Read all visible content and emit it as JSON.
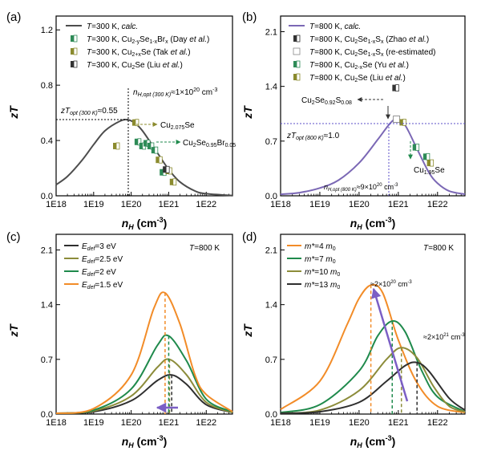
{
  "chart_data": [
    {
      "panel": "(a)",
      "type": "line",
      "xlabel": "n_H (cm^-3)",
      "ylabel": "zT",
      "x_scale": "log",
      "xlim": [
        1e+18,
        5e+22
      ],
      "ylim": [
        0,
        1.3
      ],
      "xticks": [
        1e+18,
        1e+19,
        1e+20,
        1e+21,
        1e+22
      ],
      "xtick_labels": [
        "1E18",
        "1E19",
        "1E20",
        "1E21",
        "1E22"
      ],
      "yticks": [
        0.0,
        0.4,
        0.8,
        1.2
      ],
      "ytick_labels": [
        "0.0",
        "0.4",
        "0.8",
        "1.2"
      ],
      "legend_position": "top-left",
      "series": [
        {
          "name": "T=300 K, calc.",
          "kind": "line",
          "color": "#4d4d4d",
          "x": [
            1e+18,
            2e+18,
            5e+18,
            1e+19,
            2e+19,
            5e+19,
            8e+19,
            1.2e+20,
            2e+20,
            5e+20,
            1e+21,
            2e+21,
            5e+21,
            1e+22,
            5e+22
          ],
          "y": [
            0.08,
            0.14,
            0.26,
            0.37,
            0.47,
            0.54,
            0.55,
            0.53,
            0.47,
            0.31,
            0.19,
            0.1,
            0.035,
            0.015,
            0.002
          ]
        },
        {
          "name": "T=300 K, Cu2-ySe1-xBrx (Day et al.)",
          "kind": "marker",
          "color": "#2e8b57",
          "x": [
            1.5e+20,
            2e+20,
            2.6e+20,
            3.3e+20,
            4.2e+20,
            7e+20
          ],
          "y": [
            0.39,
            0.36,
            0.38,
            0.36,
            0.33,
            0.17
          ]
        },
        {
          "name": "T=300 K, Cu2+xSe (Tak et al.)",
          "kind": "marker",
          "color": "#8b8b2e",
          "x": [
            4e+19,
            1.3e+20,
            5.5e+20,
            1e+21,
            1.3e+21
          ],
          "y": [
            0.36,
            0.53,
            0.26,
            0.18,
            0.1
          ]
        },
        {
          "name": "T=300 K, Cu2Se (Liu et al.)",
          "kind": "marker",
          "color": "#333333",
          "x": [
            8.5e+20
          ],
          "y": [
            0.19
          ]
        }
      ],
      "annotations": [
        "zT_opt (300 K)≈0.55",
        "n_H,opt (300 K)≈1×10^20 cm^-3",
        "Cu2.075Se",
        "Cu2Se0.95Br0.05"
      ]
    },
    {
      "panel": "(b)",
      "type": "line",
      "xlabel": "n_H (cm^-3)",
      "ylabel": "zT",
      "x_scale": "log",
      "xlim": [
        1e+18,
        5e+22
      ],
      "ylim": [
        0,
        2.3
      ],
      "xticks": [
        1e+18,
        1e+19,
        1e+20,
        1e+21,
        1e+22
      ],
      "xtick_labels": [
        "1E18",
        "1E19",
        "1E20",
        "1E21",
        "1E22"
      ],
      "yticks": [
        0.0,
        0.7,
        1.4,
        2.1
      ],
      "ytick_labels": [
        "0.0",
        "0.7",
        "1.4",
        "2.1"
      ],
      "legend_position": "top-right",
      "series": [
        {
          "name": "T=800 K, calc.",
          "kind": "line",
          "color": "#7b68b5",
          "x": [
            1e+18,
            3e+18,
            1e+19,
            3e+19,
            1e+20,
            3e+20,
            6e+20,
            9e+20,
            1.5e+21,
            3e+21,
            6e+21,
            1e+22,
            2e+22,
            5e+22
          ],
          "y": [
            0.02,
            0.04,
            0.1,
            0.2,
            0.42,
            0.72,
            0.92,
            0.98,
            0.9,
            0.6,
            0.3,
            0.16,
            0.06,
            0.02
          ]
        },
        {
          "name": "T=800 K, Cu2Se1-xSx (Zhao et al.)",
          "kind": "marker",
          "color": "#333333",
          "x": [
            8.5e+20
          ],
          "y": [
            1.38
          ]
        },
        {
          "name": "T=800 K, Cu2Se1-xSx (re-estimated)",
          "kind": "marker",
          "color": "#888888",
          "x": [
            9e+20
          ],
          "y": [
            0.98
          ]
        },
        {
          "name": "T=800 K, Cu2-xSe (Yu et al.)",
          "kind": "marker",
          "color": "#2e8b57",
          "x": [
            2.8e+21,
            5.2e+21
          ],
          "y": [
            0.62,
            0.5
          ]
        },
        {
          "name": "T=800 K, Cu2Se (Liu et al.)",
          "kind": "marker",
          "color": "#8b8b2e",
          "x": [
            1.3e+21,
            6.5e+21
          ],
          "y": [
            0.94,
            0.42
          ]
        }
      ],
      "annotations": [
        "Cu2Se0.92S0.08",
        "zT_opt (800 K)≈1.0",
        "n_H,opt (800 K)≈9×10^20 cm^-3",
        "Cu1.95Se"
      ]
    },
    {
      "panel": "(c)",
      "type": "line",
      "xlabel": "n_H (cm^-3)",
      "ylabel": "zT",
      "x_scale": "log",
      "xlim": [
        1e+18,
        5e+22
      ],
      "ylim": [
        0,
        2.3
      ],
      "xticks": [
        1e+18,
        1e+19,
        1e+20,
        1e+21,
        1e+22
      ],
      "xtick_labels": [
        "1E18",
        "1E19",
        "1E20",
        "1E21",
        "1E22"
      ],
      "yticks": [
        0.0,
        0.7,
        1.4,
        2.1
      ],
      "ytick_labels": [
        "0.0",
        "0.7",
        "1.4",
        "2.1"
      ],
      "legend_position": "top-left",
      "note": "T=800 K",
      "series": [
        {
          "name": "E_def=3 eV",
          "color": "#2f2f2f",
          "x": [
            1e+18,
            1e+19,
            1e+20,
            5e+20,
            1.2e+21,
            3e+21,
            1e+22,
            5e+22
          ],
          "y": [
            0.01,
            0.03,
            0.17,
            0.43,
            0.5,
            0.38,
            0.12,
            0.02
          ]
        },
        {
          "name": "E_def=2.5 eV",
          "color": "#8c8c3a",
          "x": [
            1e+18,
            1e+19,
            1e+20,
            5e+20,
            1.05e+21,
            3e+21,
            1e+22,
            5e+22
          ],
          "y": [
            0.01,
            0.04,
            0.23,
            0.6,
            0.7,
            0.5,
            0.15,
            0.02
          ]
        },
        {
          "name": "E_def=2 eV",
          "color": "#1f8a4c",
          "x": [
            1e+18,
            1e+19,
            1e+20,
            5e+20,
            1e+21,
            3e+21,
            1e+22,
            5e+22
          ],
          "y": [
            0.01,
            0.05,
            0.32,
            0.88,
            1.0,
            0.68,
            0.19,
            0.03
          ]
        },
        {
          "name": "E_def=1.5 eV",
          "color": "#f28c28",
          "x": [
            1e+18,
            1e+19,
            1e+20,
            4e+20,
            8e+20,
            2e+21,
            5e+21,
            1e+22,
            5e+22
          ],
          "y": [
            0.01,
            0.07,
            0.5,
            1.35,
            1.55,
            1.15,
            0.5,
            0.25,
            0.03
          ]
        }
      ]
    },
    {
      "panel": "(d)",
      "type": "line",
      "xlabel": "n_H (cm^-3)",
      "ylabel": "zT",
      "x_scale": "log",
      "xlim": [
        1e+18,
        5e+22
      ],
      "ylim": [
        0,
        2.3
      ],
      "xticks": [
        1e+18,
        1e+19,
        1e+20,
        1e+21,
        1e+22
      ],
      "xtick_labels": [
        "1E18",
        "1E19",
        "1E20",
        "1E21",
        "1E22"
      ],
      "yticks": [
        0.0,
        0.7,
        1.4,
        2.1
      ],
      "ytick_labels": [
        "0.0",
        "0.7",
        "1.4",
        "2.1"
      ],
      "legend_position": "top-left",
      "note": "T=800 K",
      "series": [
        {
          "name": "m*=4 m0",
          "color": "#f28c28",
          "x": [
            1e+18,
            1e+19,
            5e+19,
            1e+20,
            2e+20,
            4e+20,
            1e+21,
            3e+21,
            1e+22,
            5e+22
          ],
          "y": [
            0.06,
            0.42,
            1.15,
            1.48,
            1.65,
            1.55,
            0.95,
            0.4,
            0.1,
            0.02
          ]
        },
        {
          "name": "m*=7 m0",
          "color": "#1f8a4c",
          "x": [
            1e+18,
            1e+19,
            1e+20,
            3e+20,
            7e+20,
            1.5e+21,
            4e+21,
            1e+22,
            5e+22
          ],
          "y": [
            0.02,
            0.12,
            0.55,
            1.0,
            1.19,
            1.05,
            0.55,
            0.22,
            0.03
          ]
        },
        {
          "name": "m*=10 m0",
          "color": "#8c8c3a",
          "x": [
            1e+18,
            1e+19,
            1e+20,
            5e+20,
            1.2e+21,
            3e+21,
            8e+21,
            2e+22,
            5e+22
          ],
          "y": [
            0.01,
            0.05,
            0.3,
            0.7,
            0.85,
            0.72,
            0.35,
            0.1,
            0.03
          ]
        },
        {
          "name": "m*=13 m0",
          "color": "#2f2f2f",
          "x": [
            1e+18,
            1e+19,
            1e+20,
            5e+20,
            1.5e+21,
            3e+21,
            6e+21,
            2e+22,
            5e+22
          ],
          "y": [
            0.01,
            0.03,
            0.15,
            0.42,
            0.62,
            0.66,
            0.55,
            0.2,
            0.05
          ]
        }
      ],
      "annotations": [
        "≈2×10^20 cm^-3",
        "≈2×10^21 cm^-3"
      ]
    }
  ]
}
